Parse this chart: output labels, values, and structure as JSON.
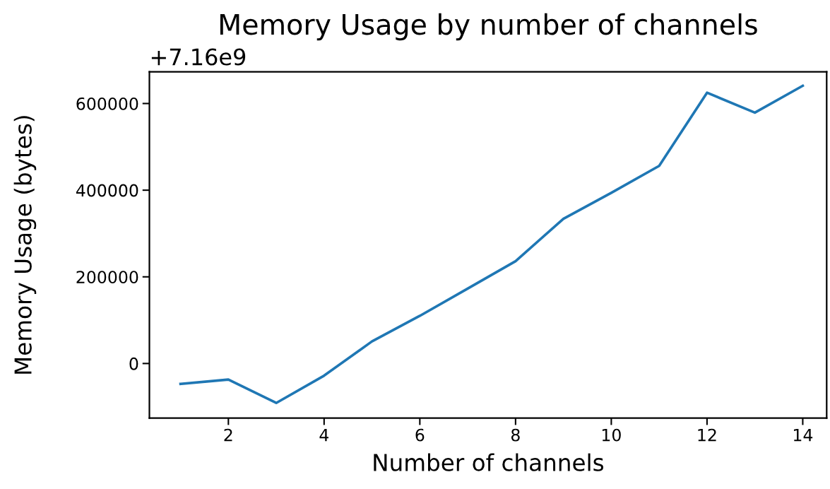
{
  "chart_data": {
    "type": "line",
    "title": "Memory Usage by number of channels",
    "xlabel": "Number of channels",
    "ylabel": "Memory Usage (bytes)",
    "annotations": [
      "+7.16e9"
    ],
    "x": [
      1,
      2,
      3,
      4,
      5,
      6,
      7,
      8,
      9,
      10,
      11,
      12,
      13,
      14
    ],
    "values": [
      -47000,
      -37000,
      -91000,
      -28000,
      51000,
      110000,
      173000,
      236000,
      334000,
      394000,
      456000,
      625000,
      579000,
      641000
    ],
    "color": "#1f77b4",
    "xlim": [
      0.35,
      14.5
    ],
    "ylim": [
      -126000,
      673000
    ],
    "xticks": [
      2,
      4,
      6,
      8,
      10,
      12,
      14
    ],
    "yticks": [
      0,
      200000,
      400000,
      600000
    ]
  }
}
